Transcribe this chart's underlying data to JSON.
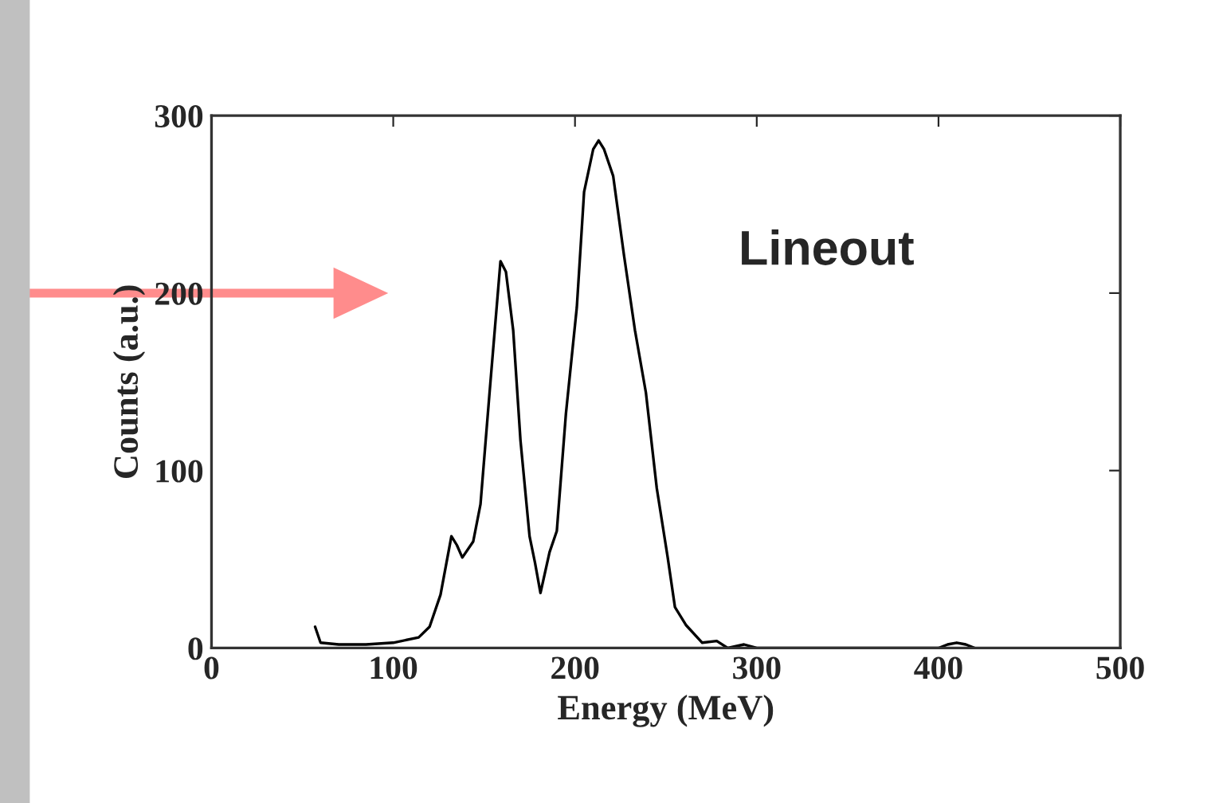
{
  "chart_data": {
    "type": "line",
    "xlabel": "Energy (MeV)",
    "ylabel": "Counts (a.u.)",
    "annotations": [
      "Lineout"
    ],
    "xlim": [
      0,
      500
    ],
    "ylim": [
      0,
      300
    ],
    "xticks": [
      0,
      100,
      200,
      300,
      400,
      500
    ],
    "yticks": [
      0,
      100,
      200,
      300
    ],
    "grid": false,
    "legend": false,
    "marker": "none",
    "line_style": "solid",
    "series": [
      {
        "color": "#000000",
        "x": [
          57,
          60,
          70,
          85,
          100,
          114,
          120,
          126,
          132,
          135,
          138,
          144,
          148,
          153,
          159,
          162,
          166,
          170,
          175,
          178,
          181,
          186,
          190,
          195,
          201,
          205,
          210,
          213,
          216,
          221,
          227,
          233,
          239,
          245,
          251,
          255,
          261,
          270,
          278,
          284,
          293,
          300,
          320,
          350,
          400,
          405,
          410,
          415,
          420
        ],
        "values": [
          12,
          3,
          2,
          2,
          3,
          6,
          12,
          30,
          63,
          58,
          51,
          60,
          81,
          144,
          218,
          212,
          179,
          117,
          63,
          48,
          31,
          54,
          66,
          132,
          192,
          257,
          281,
          286,
          281,
          266,
          221,
          179,
          144,
          90,
          51,
          23,
          13,
          3,
          4,
          0,
          2,
          0,
          0,
          0,
          0,
          2,
          3,
          2,
          0
        ]
      }
    ]
  }
}
